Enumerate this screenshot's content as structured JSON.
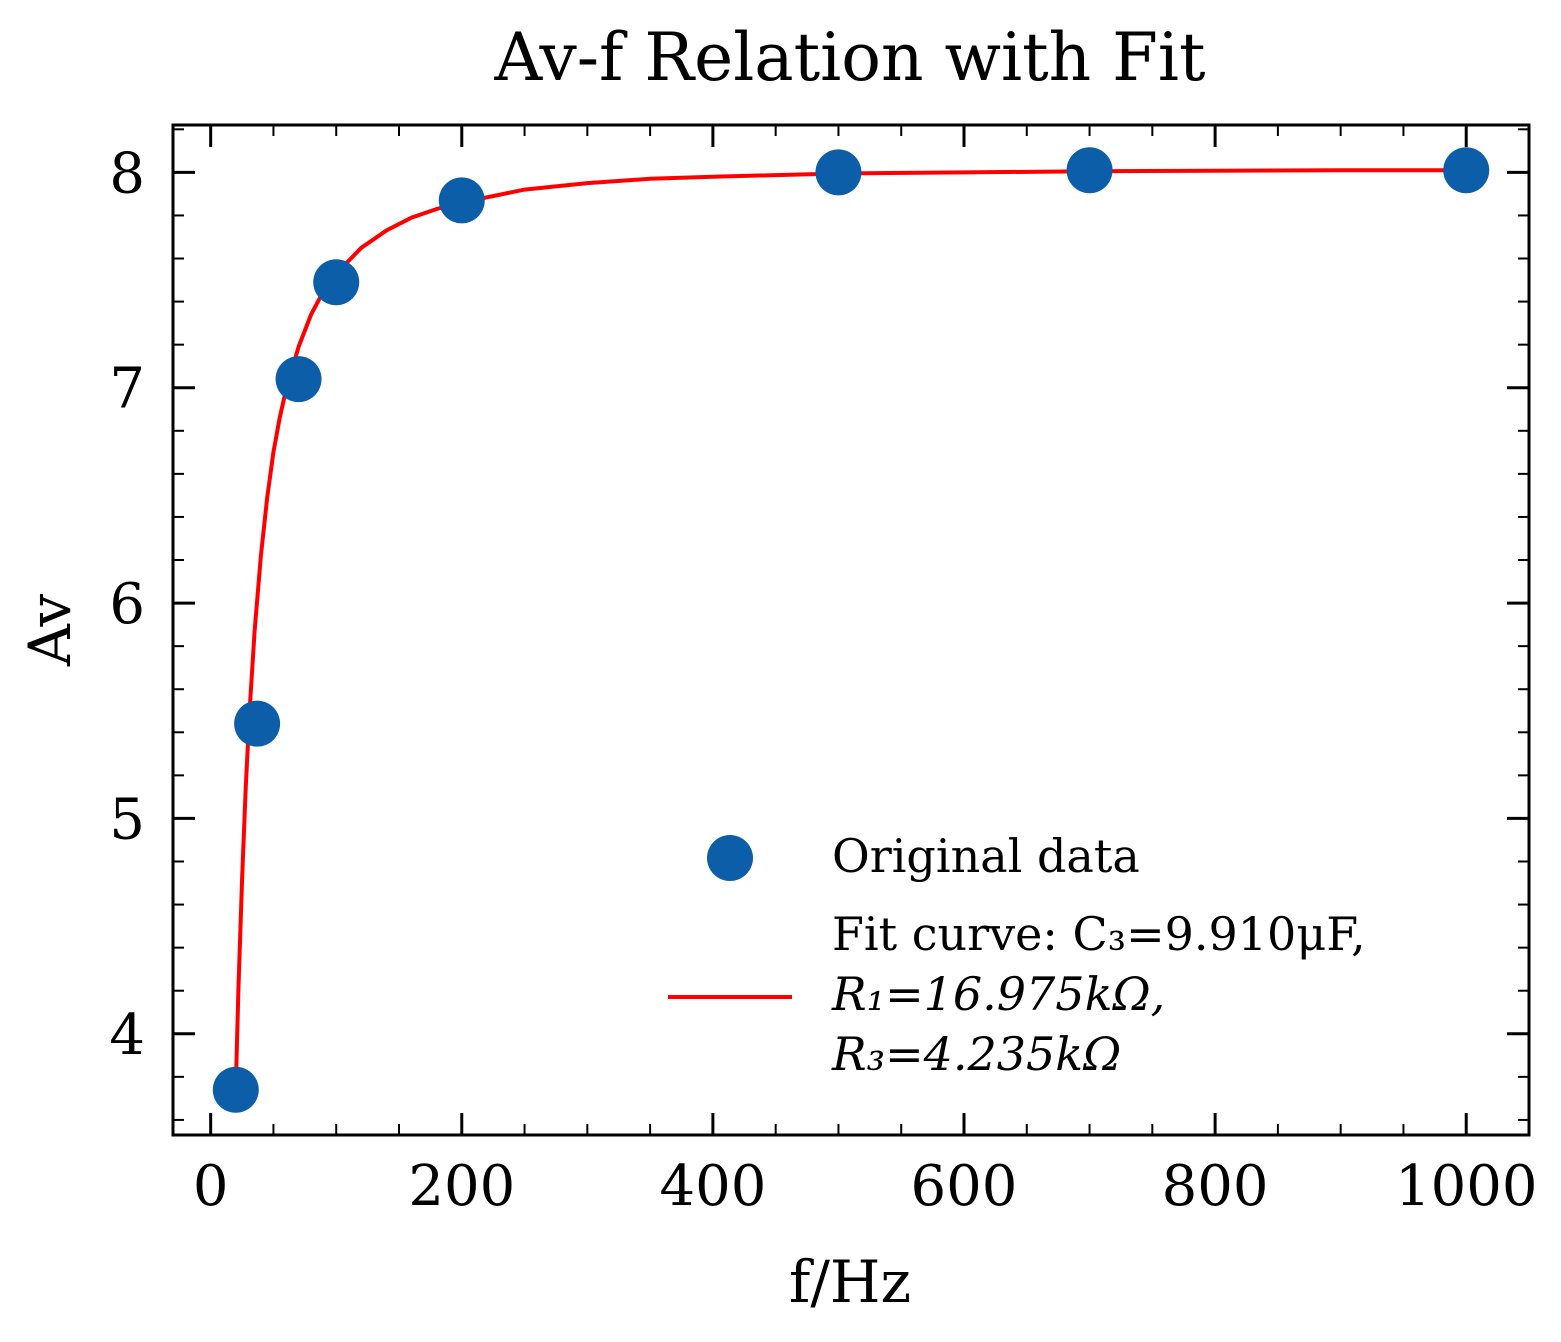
{
  "chart_data": {
    "type": "scatter",
    "title": "Av-f Relation with Fit",
    "xlabel": "f/Hz",
    "ylabel": "Av",
    "xlim": [
      -30,
      1050
    ],
    "ylim": [
      3.53,
      8.22
    ],
    "xticks": [
      0,
      200,
      400,
      600,
      800,
      1000
    ],
    "yticks": [
      4,
      5,
      6,
      7,
      8
    ],
    "xtick_labels": [
      "0",
      "200",
      "400",
      "600",
      "800",
      "1000"
    ],
    "ytick_labels": [
      "4",
      "5",
      "6",
      "7",
      "8"
    ],
    "grid": false,
    "legend_position": "lower-right",
    "colors": {
      "scatter": "#0c5ea8",
      "fit": "#ff0000",
      "axes": "#000000"
    },
    "series": [
      {
        "name": "Original data",
        "kind": "scatter",
        "x": [
          20,
          37,
          70,
          100,
          200,
          500,
          700,
          1000
        ],
        "y": [
          3.74,
          5.44,
          7.04,
          7.49,
          7.87,
          8.0,
          8.01,
          8.01
        ]
      },
      {
        "name": "Fit curve: C3=9.910μF, R1=16.975kΩ, R3=4.235kΩ",
        "kind": "line",
        "x": [
          20,
          22,
          25,
          28,
          31,
          35,
          40,
          45,
          50,
          55,
          60,
          70,
          80,
          90,
          100,
          120,
          140,
          160,
          180,
          200,
          250,
          300,
          350,
          400,
          500,
          600,
          700,
          800,
          900,
          1000
        ],
        "y": [
          3.75,
          4.19,
          4.72,
          5.15,
          5.5,
          5.87,
          6.22,
          6.49,
          6.7,
          6.86,
          6.99,
          7.19,
          7.34,
          7.45,
          7.53,
          7.65,
          7.73,
          7.79,
          7.83,
          7.86,
          7.92,
          7.95,
          7.97,
          7.98,
          7.995,
          8.0,
          8.005,
          8.008,
          8.01,
          8.01
        ]
      }
    ],
    "legend": {
      "scatter_label": "Original data",
      "fit_line1": "Fit curve: C₃=9.910μF,",
      "fit_line2": "R₁=16.975kΩ,",
      "fit_line3": "R₃=4.235kΩ"
    }
  }
}
